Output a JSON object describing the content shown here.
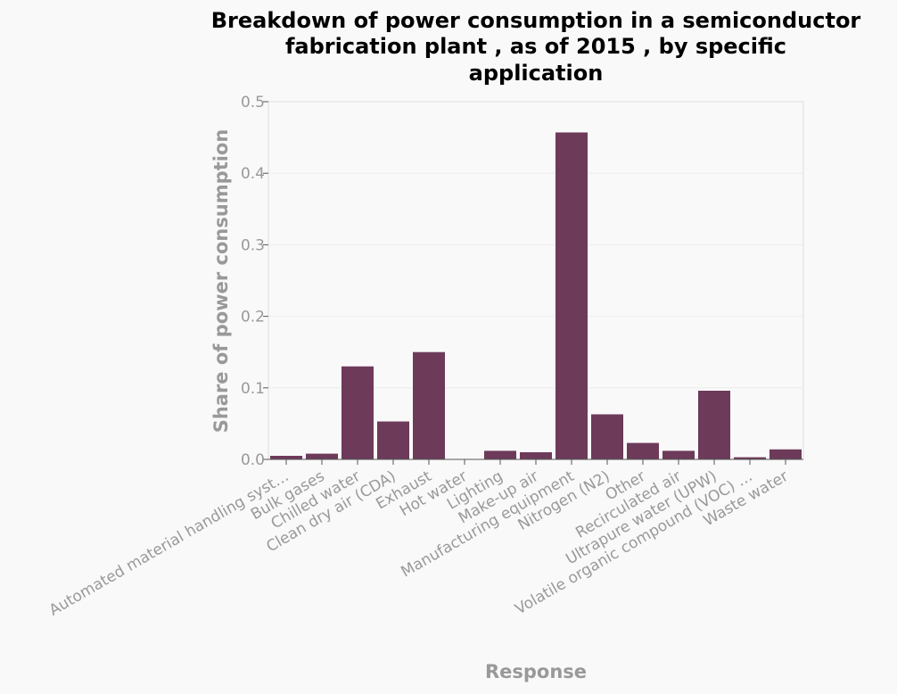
{
  "chart_data": {
    "type": "bar",
    "title": [
      "Breakdown of power consumption in a semiconductor",
      "fabrication plant , as of 2015 , by specific",
      "application"
    ],
    "xlabel": "Response",
    "ylabel": "Share of power consumption",
    "categories": [
      "Automated material handling syst…",
      "Bulk gases",
      "Chilled water",
      "Clean dry air (CDA)",
      "Exhaust",
      "Hot water",
      "Lighting",
      "Make-up air",
      "Manufacturing equipment",
      "Nitrogen (N2)",
      "Other",
      "Recirculated air",
      "Ultrapure water (UPW)",
      "Volatile organic compound (VOC) …",
      "Waste water"
    ],
    "values": [
      0.005,
      0.008,
      0.13,
      0.053,
      0.15,
      0.0,
      0.012,
      0.01,
      0.457,
      0.063,
      0.023,
      0.012,
      0.096,
      0.003,
      0.014
    ],
    "yticks": [
      "0.0",
      "0.1",
      "0.2",
      "0.3",
      "0.4",
      "0.5"
    ],
    "ylim": [
      0,
      0.5
    ],
    "grid": true,
    "bar_color": "#6d3a5a"
  }
}
